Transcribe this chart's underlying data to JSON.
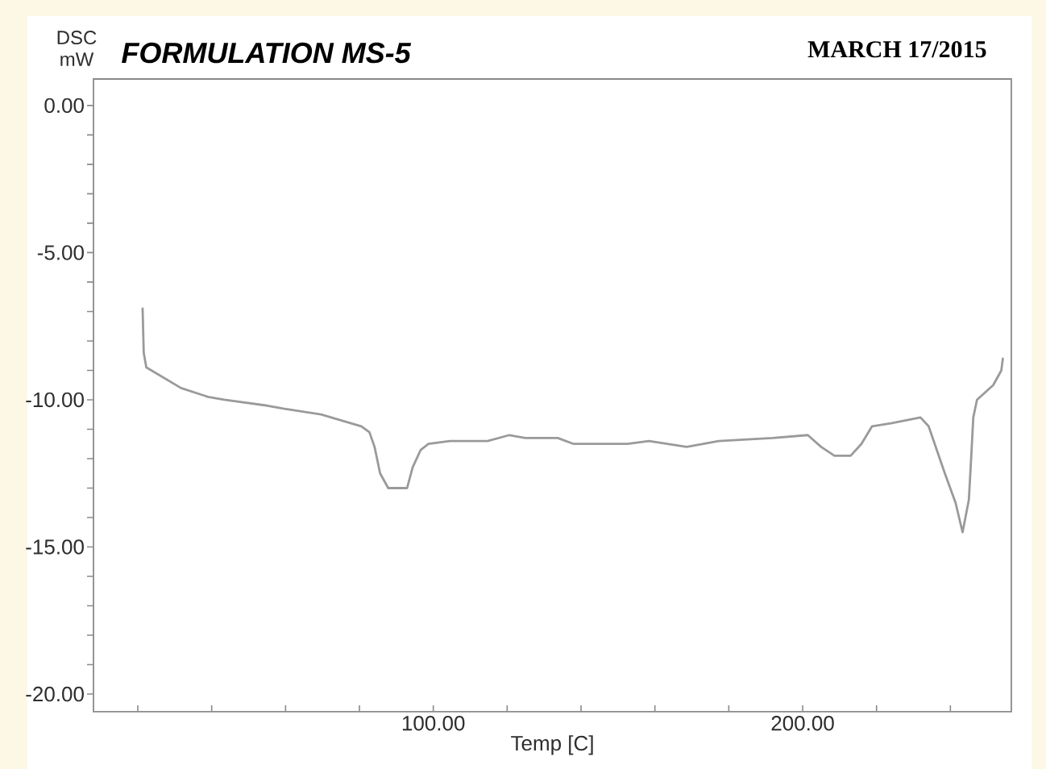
{
  "chart_data": {
    "type": "line",
    "title": "FORMULATION MS-5",
    "subtitle": "MARCH 17/2015",
    "xlabel": "Temp [C]",
    "ylabel": "DSC mW",
    "xlim": [
      8,
      256.5
    ],
    "ylim": [
      -20.6,
      0.9
    ],
    "xticks": [
      {
        "value": 20,
        "label": null
      },
      {
        "value": 40,
        "label": null
      },
      {
        "value": 60,
        "label": null
      },
      {
        "value": 80,
        "label": null
      },
      {
        "value": 100,
        "label": "100.00"
      },
      {
        "value": 120,
        "label": null
      },
      {
        "value": 140,
        "label": null
      },
      {
        "value": 160,
        "label": null
      },
      {
        "value": 180,
        "label": null
      },
      {
        "value": 200,
        "label": "200.00"
      },
      {
        "value": 220,
        "label": null
      },
      {
        "value": 240,
        "label": null
      }
    ],
    "yticks": [
      {
        "value": -20,
        "label": "-20.00"
      },
      {
        "value": -19,
        "label": null
      },
      {
        "value": -18,
        "label": null
      },
      {
        "value": -17,
        "label": null
      },
      {
        "value": -16,
        "label": null
      },
      {
        "value": -15,
        "label": "-15.00"
      },
      {
        "value": -14,
        "label": null
      },
      {
        "value": -13,
        "label": null
      },
      {
        "value": -12,
        "label": null
      },
      {
        "value": -11,
        "label": null
      },
      {
        "value": -10,
        "label": "-10.00"
      },
      {
        "value": -9,
        "label": null
      },
      {
        "value": -8,
        "label": null
      },
      {
        "value": -7,
        "label": null
      },
      {
        "value": -6,
        "label": null
      },
      {
        "value": -5,
        "label": "-5.00"
      },
      {
        "value": -4,
        "label": null
      },
      {
        "value": -3,
        "label": null
      },
      {
        "value": -2,
        "label": null
      },
      {
        "value": -1,
        "label": null
      },
      {
        "value": 0,
        "label": "0.00"
      }
    ],
    "color": "#9a9a9a",
    "x": [
      21.3,
      21.6,
      22.3,
      31.7,
      39.0,
      43.4,
      55.1,
      59.4,
      69.6,
      80.5,
      82.7,
      84.1,
      85.6,
      87.8,
      90.7,
      92.9,
      94.4,
      96.6,
      98.7,
      104.5,
      114.7,
      120.6,
      124.9,
      133.7,
      138.0,
      152.6,
      158.4,
      168.6,
      177.3,
      191.9,
      201.4,
      205.0,
      208.6,
      213.0,
      215.9,
      218.8,
      223.9,
      231.9,
      234.1,
      238.5,
      241.4,
      243.3,
      245.0,
      245.7,
      246.2,
      247.2,
      251.6,
      253.8,
      254.2
    ],
    "values": [
      -6.9,
      -8.4,
      -8.9,
      -9.6,
      -9.9,
      -10.0,
      -10.2,
      -10.3,
      -10.5,
      -10.9,
      -11.1,
      -11.6,
      -12.5,
      -13.0,
      -13.0,
      -13.0,
      -12.3,
      -11.7,
      -11.5,
      -11.4,
      -11.4,
      -11.2,
      -11.3,
      -11.3,
      -11.5,
      -11.5,
      -11.4,
      -11.6,
      -11.4,
      -11.3,
      -11.2,
      -11.6,
      -11.9,
      -11.9,
      -11.5,
      -10.9,
      -10.8,
      -10.6,
      -10.9,
      -12.5,
      -13.5,
      -14.5,
      -13.4,
      -11.8,
      -10.6,
      -10.0,
      -9.5,
      -9.0,
      -8.6
    ]
  }
}
